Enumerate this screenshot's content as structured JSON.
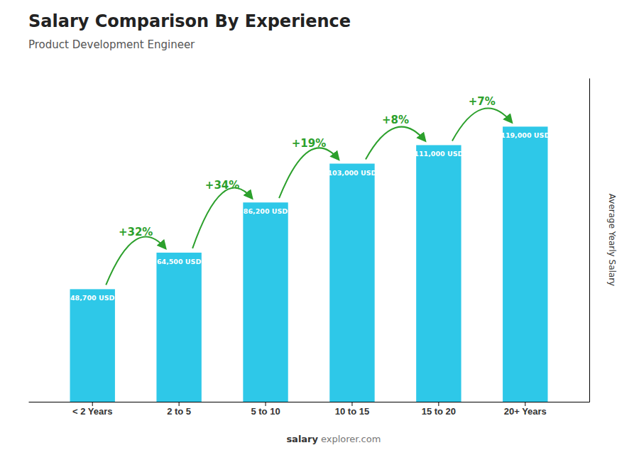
{
  "chart_data": {
    "type": "bar",
    "title": "Salary Comparison By Experience",
    "subtitle": "Product Development Engineer",
    "y_label": "Average Yearly Salary",
    "categories": [
      "< 2 Years",
      "2 to 5",
      "5 to 10",
      "10 to 15",
      "15 to 20",
      "20+ Years"
    ],
    "values": [
      48700,
      64500,
      86200,
      103000,
      111000,
      119000
    ],
    "value_labels": [
      "48,700 USD",
      "64,500 USD",
      "86,200 USD",
      "103,000 USD",
      "111,000 USD",
      "119,000 USD"
    ],
    "data_labels": true,
    "annotations": [
      "+32%",
      "+34%",
      "+19%",
      "+8%",
      "+7%"
    ],
    "watermark": [
      "salary",
      "explorer.com"
    ],
    "color": "#2ec8e8",
    "ylim": [
      0,
      140000
    ],
    "tick_labels": "x"
  }
}
